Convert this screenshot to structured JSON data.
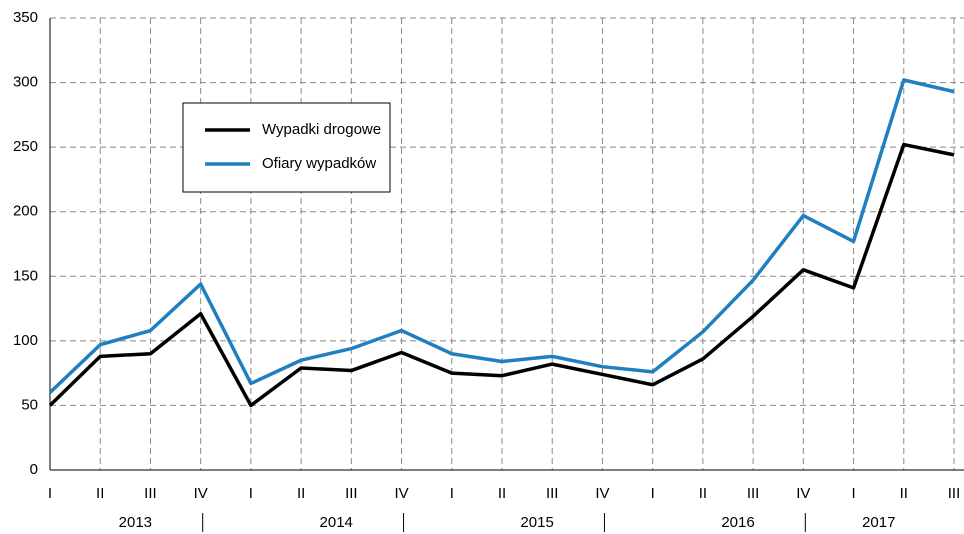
{
  "chart_data": {
    "type": "line",
    "categories": [
      "I",
      "II",
      "III",
      "IV",
      "I",
      "II",
      "III",
      "IV",
      "I",
      "II",
      "III",
      "IV",
      "I",
      "II",
      "III",
      "IV",
      "I",
      "II",
      "III"
    ],
    "years": [
      "2013",
      "2014",
      "2015",
      "2016",
      "2017"
    ],
    "series": [
      {
        "name": "Wypadki drogowe",
        "color": "#000000",
        "values": [
          50,
          88,
          90,
          121,
          50,
          79,
          77,
          91,
          75,
          73,
          82,
          74,
          66,
          86,
          119,
          155,
          141,
          252,
          244
        ]
      },
      {
        "name": "Ofiary wypadków",
        "color": "#1f7fc0",
        "values": [
          60,
          97,
          108,
          144,
          67,
          85,
          94,
          108,
          90,
          84,
          88,
          80,
          76,
          107,
          147,
          197,
          177,
          302,
          293
        ]
      }
    ],
    "ylim": [
      0,
      350
    ],
    "yticks": [
      0,
      50,
      100,
      150,
      200,
      250,
      300,
      350
    ],
    "grid": true
  }
}
